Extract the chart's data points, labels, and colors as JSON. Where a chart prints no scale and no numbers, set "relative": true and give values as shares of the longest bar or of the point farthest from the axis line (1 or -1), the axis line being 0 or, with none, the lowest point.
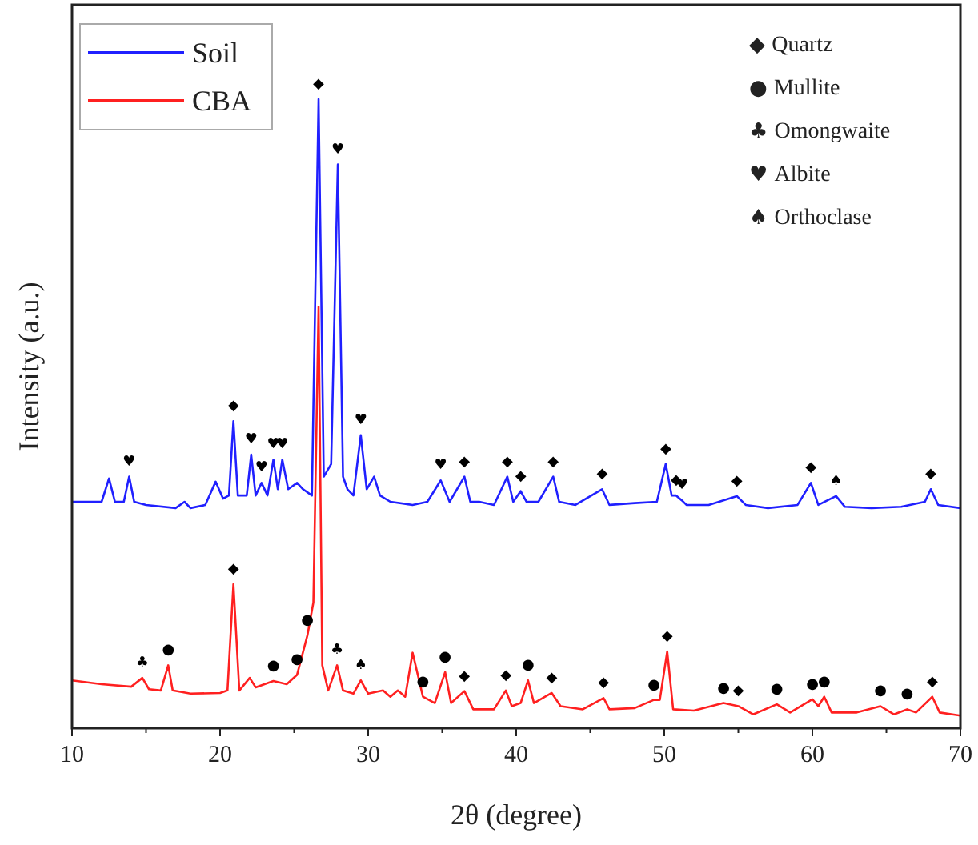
{
  "chart_data": {
    "type": "line",
    "relative": true,
    "xlabel": "2θ (degree)",
    "ylabel": "Intensity (a.u.)",
    "xlim": [
      10,
      70
    ],
    "xticks": [
      10,
      {
        "value": 15,
        "label": null
      },
      20,
      {
        "value": 25,
        "label": null
      },
      30,
      {
        "value": 35,
        "label": null
      },
      40,
      {
        "value": 45,
        "label": null
      },
      50,
      {
        "value": 55,
        "label": null
      },
      60,
      {
        "value": 65,
        "label": null
      },
      70
    ],
    "legend": "top left",
    "grid": false,
    "marker": "none",
    "line_style": "solid",
    "tick_labels": "x",
    "series": [
      {
        "name": "Soil",
        "color": "#2020ff",
        "x": [
          10,
          12,
          12.5,
          12.9,
          13.5,
          13.86,
          14.2,
          15,
          17,
          17.6,
          18,
          19,
          19.7,
          20.2,
          20.6,
          20.9,
          21.2,
          21.8,
          22.1,
          22.4,
          22.8,
          23.2,
          23.6,
          23.9,
          24.2,
          24.6,
          25.2,
          25.6,
          26.2,
          26.65,
          27,
          27.5,
          27.95,
          28.3,
          28.6,
          29,
          29.5,
          29.9,
          30.4,
          30.8,
          31.5,
          33,
          34,
          34.9,
          35.5,
          36.5,
          36.9,
          37.5,
          38.5,
          39.4,
          39.8,
          40.3,
          40.7,
          41.5,
          42.5,
          42.9,
          44,
          45.8,
          46.3,
          48,
          49.5,
          50.1,
          50.5,
          50.8,
          51.2,
          51.5,
          53,
          54.9,
          55.5,
          57,
          59,
          59.9,
          60.4,
          61.6,
          62.2,
          64,
          66,
          67.6,
          68,
          68.5,
          70
        ],
        "values": [
          0.36,
          0.36,
          0.397,
          0.36,
          0.36,
          0.4,
          0.36,
          0.355,
          0.35,
          0.36,
          0.35,
          0.355,
          0.392,
          0.365,
          0.37,
          0.488,
          0.37,
          0.37,
          0.435,
          0.37,
          0.39,
          0.37,
          0.427,
          0.38,
          0.427,
          0.38,
          0.39,
          0.38,
          0.37,
          1,
          0.4,
          0.42,
          0.896,
          0.4,
          0.38,
          0.37,
          0.466,
          0.38,
          0.4,
          0.37,
          0.36,
          0.355,
          0.36,
          0.394,
          0.36,
          0.4,
          0.36,
          0.36,
          0.355,
          0.4,
          0.36,
          0.377,
          0.36,
          0.36,
          0.4,
          0.36,
          0.355,
          0.38,
          0.355,
          0.358,
          0.36,
          0.42,
          0.37,
          0.37,
          0.362,
          0.355,
          0.355,
          0.369,
          0.355,
          0.35,
          0.355,
          0.39,
          0.355,
          0.369,
          0.352,
          0.35,
          0.352,
          0.36,
          0.38,
          0.355,
          0.35
        ]
      },
      {
        "name": "CBA",
        "color": "#ff2020",
        "x": [
          10,
          12,
          14,
          14.75,
          15.2,
          16,
          16.5,
          16.8,
          18,
          20,
          20.5,
          20.9,
          21.3,
          22,
          22.4,
          23.6,
          24.5,
          25.2,
          25.9,
          26.3,
          26.65,
          26.9,
          27.3,
          27.9,
          28.3,
          29,
          29.5,
          30,
          31,
          31.5,
          32,
          32.5,
          33,
          33.7,
          34.5,
          35.2,
          35.6,
          36.5,
          37.1,
          38.5,
          39.3,
          39.7,
          40.3,
          40.8,
          41.2,
          42.4,
          43,
          44.5,
          45.9,
          46.3,
          48,
          49.3,
          49.7,
          50.2,
          50.6,
          52,
          54,
          55,
          56,
          57.6,
          58.5,
          60,
          60.4,
          60.8,
          61.3,
          63,
          64.6,
          65.5,
          66.4,
          67,
          68.1,
          68.6,
          70
        ],
        "values": [
          0.076,
          0.07,
          0.066,
          0.08,
          0.062,
          0.06,
          0.1,
          0.06,
          0.055,
          0.056,
          0.06,
          0.229,
          0.06,
          0.08,
          0.065,
          0.075,
          0.07,
          0.085,
          0.148,
          0.2,
          0.67,
          0.1,
          0.06,
          0.1,
          0.06,
          0.055,
          0.076,
          0.055,
          0.06,
          0.05,
          0.06,
          0.05,
          0.12,
          0.05,
          0.04,
          0.089,
          0.04,
          0.059,
          0.03,
          0.03,
          0.06,
          0.035,
          0.04,
          0.076,
          0.04,
          0.056,
          0.035,
          0.03,
          0.048,
          0.03,
          0.032,
          0.045,
          0.045,
          0.122,
          0.03,
          0.028,
          0.04,
          0.035,
          0.022,
          0.038,
          0.025,
          0.046,
          0.035,
          0.05,
          0.025,
          0.025,
          0.035,
          0.022,
          0.03,
          0.025,
          0.05,
          0.025,
          0.02
        ]
      }
    ],
    "annotations": [
      "◆ Quartz",
      "● Mullite",
      "♣ Omongwaite",
      "♥ Albite",
      "♠ Orthoclase",
      {
        "text": "♥",
        "x": 13.86,
        "y": 0.4
      },
      {
        "text": "◆",
        "x": 20.9,
        "y": 0.488
      },
      {
        "text": "♥",
        "x": 22.1,
        "y": 0.435
      },
      {
        "text": "♥",
        "x": 22.8,
        "y": 0.39
      },
      {
        "text": "♥",
        "x": 23.6,
        "y": 0.427
      },
      {
        "text": "♥",
        "x": 24.2,
        "y": 0.427
      },
      {
        "text": "◆",
        "x": 26.65,
        "y": 1
      },
      {
        "text": "♥",
        "x": 27.95,
        "y": 0.896
      },
      {
        "text": "♥",
        "x": 29.5,
        "y": 0.466
      },
      {
        "text": "♥",
        "x": 34.9,
        "y": 0.394
      },
      {
        "text": "◆",
        "x": 36.5,
        "y": 0.4
      },
      {
        "text": "◆",
        "x": 39.4,
        "y": 0.4
      },
      {
        "text": "◆",
        "x": 40.3,
        "y": 0.377
      },
      {
        "text": "◆",
        "x": 42.5,
        "y": 0.4
      },
      {
        "text": "◆",
        "x": 45.8,
        "y": 0.38
      },
      {
        "text": "◆",
        "x": 50.1,
        "y": 0.42
      },
      {
        "text": "◆",
        "x": 50.8,
        "y": 0.37
      },
      {
        "text": "♥",
        "x": 51.2,
        "y": 0.362
      },
      {
        "text": "◆",
        "x": 54.9,
        "y": 0.369
      },
      {
        "text": "◆",
        "x": 59.9,
        "y": 0.39
      },
      {
        "text": "♠",
        "x": 61.6,
        "y": 0.369
      },
      {
        "text": "◆",
        "x": 68,
        "y": 0.38
      },
      {
        "text": "♣",
        "x": 14.75,
        "y": 0.08
      },
      {
        "text": "●",
        "x": 16.5,
        "y": 0.1
      },
      {
        "text": "◆",
        "x": 20.9,
        "y": 0.229
      },
      {
        "text": "●",
        "x": 23.6,
        "y": 0.075
      },
      {
        "text": "●",
        "x": 25.2,
        "y": 0.085
      },
      {
        "text": "●",
        "x": 25.9,
        "y": 0.148
      },
      {
        "text": "♣",
        "x": 27.9,
        "y": 0.1
      },
      {
        "text": "♠",
        "x": 29.5,
        "y": 0.076
      },
      {
        "text": "●",
        "x": 33.7,
        "y": 0.05
      },
      {
        "text": "●",
        "x": 35.2,
        "y": 0.089
      },
      {
        "text": "◆",
        "x": 36.5,
        "y": 0.059
      },
      {
        "text": "◆",
        "x": 39.3,
        "y": 0.06
      },
      {
        "text": "●",
        "x": 40.8,
        "y": 0.076
      },
      {
        "text": "◆",
        "x": 42.4,
        "y": 0.056
      },
      {
        "text": "◆",
        "x": 45.9,
        "y": 0.048
      },
      {
        "text": "●",
        "x": 49.3,
        "y": 0.045
      },
      {
        "text": "◆",
        "x": 50.2,
        "y": 0.122
      },
      {
        "text": "●",
        "x": 54,
        "y": 0.04
      },
      {
        "text": "◆",
        "x": 55,
        "y": 0.035
      },
      {
        "text": "●",
        "x": 57.6,
        "y": 0.038
      },
      {
        "text": "●",
        "x": 60,
        "y": 0.046
      },
      {
        "text": "●",
        "x": 60.8,
        "y": 0.05
      },
      {
        "text": "●",
        "x": 64.6,
        "y": 0.035
      },
      {
        "text": "●",
        "x": 66.4,
        "y": 0.03
      },
      {
        "text": "◆",
        "x": 68.1,
        "y": 0.05
      }
    ]
  }
}
